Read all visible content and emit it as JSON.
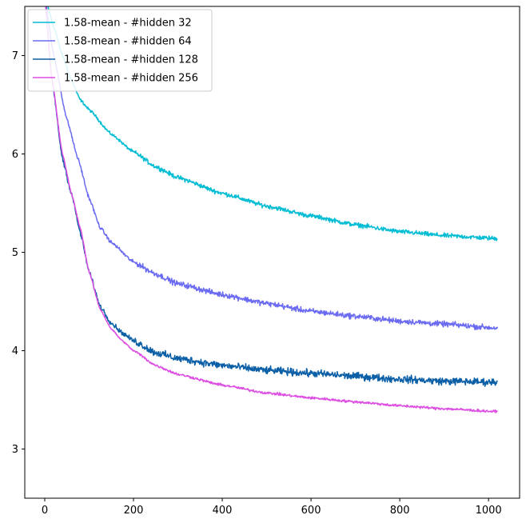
{
  "chart_data": {
    "type": "line",
    "title": "",
    "xlabel": "",
    "ylabel": "",
    "xlim": [
      -45,
      1070
    ],
    "ylim": [
      2.5,
      7.5
    ],
    "xticks": [
      0,
      200,
      400,
      600,
      800,
      1000
    ],
    "yticks": [
      3,
      4,
      5,
      6,
      7
    ],
    "grid": false,
    "legend_position": "top-left",
    "series": [
      {
        "name": "1.58-mean - #hidden 32",
        "color": "#00bcd4",
        "noise": 0.012,
        "points": [
          [
            0,
            7.6
          ],
          [
            20,
            7.3
          ],
          [
            40,
            7.0
          ],
          [
            60,
            6.75
          ],
          [
            80,
            6.55
          ],
          [
            100,
            6.45
          ],
          [
            150,
            6.2
          ],
          [
            200,
            6.02
          ],
          [
            250,
            5.87
          ],
          [
            300,
            5.76
          ],
          [
            400,
            5.6
          ],
          [
            500,
            5.47
          ],
          [
            600,
            5.37
          ],
          [
            700,
            5.28
          ],
          [
            800,
            5.21
          ],
          [
            900,
            5.17
          ],
          [
            1020,
            5.14
          ]
        ]
      },
      {
        "name": "1.58-mean - #hidden 64",
        "color": "#6b6bf2",
        "noise": 0.015,
        "points": [
          [
            0,
            7.6
          ],
          [
            20,
            7.0
          ],
          [
            50,
            6.35
          ],
          [
            75,
            5.95
          ],
          [
            100,
            5.55
          ],
          [
            125,
            5.25
          ],
          [
            150,
            5.1
          ],
          [
            200,
            4.9
          ],
          [
            250,
            4.78
          ],
          [
            300,
            4.68
          ],
          [
            400,
            4.57
          ],
          [
            500,
            4.48
          ],
          [
            600,
            4.4
          ],
          [
            700,
            4.35
          ],
          [
            800,
            4.3
          ],
          [
            900,
            4.27
          ],
          [
            1020,
            4.23
          ]
        ]
      },
      {
        "name": "1.58-mean - #hidden 128",
        "color": "#0b5fa6",
        "noise": 0.02,
        "points": [
          [
            0,
            7.6
          ],
          [
            15,
            6.8
          ],
          [
            40,
            5.95
          ],
          [
            60,
            5.6
          ],
          [
            80,
            5.2
          ],
          [
            100,
            4.8
          ],
          [
            125,
            4.45
          ],
          [
            150,
            4.28
          ],
          [
            175,
            4.18
          ],
          [
            200,
            4.1
          ],
          [
            250,
            3.98
          ],
          [
            300,
            3.92
          ],
          [
            400,
            3.85
          ],
          [
            500,
            3.8
          ],
          [
            600,
            3.77
          ],
          [
            700,
            3.74
          ],
          [
            800,
            3.71
          ],
          [
            900,
            3.69
          ],
          [
            1020,
            3.68
          ]
        ]
      },
      {
        "name": "1.58-mean - #hidden 256",
        "color": "#dd4fe3",
        "noise": 0.007,
        "points": [
          [
            0,
            7.6
          ],
          [
            15,
            6.8
          ],
          [
            40,
            6.0
          ],
          [
            60,
            5.6
          ],
          [
            80,
            5.25
          ],
          [
            100,
            4.8
          ],
          [
            125,
            4.42
          ],
          [
            150,
            4.22
          ],
          [
            175,
            4.1
          ],
          [
            200,
            4.0
          ],
          [
            250,
            3.85
          ],
          [
            300,
            3.76
          ],
          [
            400,
            3.65
          ],
          [
            500,
            3.57
          ],
          [
            600,
            3.52
          ],
          [
            700,
            3.48
          ],
          [
            800,
            3.44
          ],
          [
            900,
            3.41
          ],
          [
            1020,
            3.38
          ]
        ]
      }
    ]
  }
}
